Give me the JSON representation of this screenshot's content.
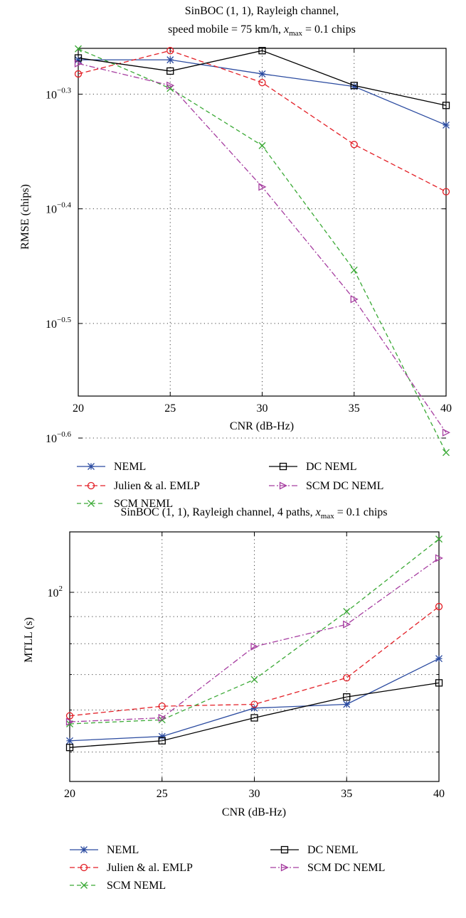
{
  "chart_data": [
    {
      "type": "line",
      "title_line1": "SinBOC (1, 1), Rayleigh channel,",
      "title_line2_prefix": "speed mobile = 75 km/h, ",
      "title_xmax_sym": "x",
      "title_xmax_sub": "max",
      "title_line2_suffix": " = 0.1 chips",
      "xlabel": "CNR (dB-Hz)",
      "ylabel": "RMSE (chips)",
      "yscale": "log",
      "xlim": [
        20,
        40
      ],
      "ylim": [
        0.2733,
        0.5495
      ],
      "x_ticks": [
        "20",
        "25",
        "30",
        "35",
        "40"
      ],
      "y_ticks": [
        {
          "value": 0.5012,
          "base": "10",
          "exp": "−0.3"
        },
        {
          "value": 0.3981,
          "base": "10",
          "exp": "−0.4"
        },
        {
          "value": 0.3162,
          "base": "10",
          "exp": "−0.5"
        },
        {
          "value": 0.2512,
          "base": "10",
          "exp": "−0.6"
        }
      ],
      "grid": true,
      "x": [
        20,
        25,
        30,
        35,
        40
      ],
      "series": [
        {
          "name": "NEML",
          "marker": "star",
          "color": "#2b4ba0",
          "dash": "",
          "values": [
            0.537,
            0.537,
            0.522,
            0.509,
            0.471
          ]
        },
        {
          "name": "Julien & al. EMLP",
          "marker": "circle",
          "color": "#e31f26",
          "dash": "7 4",
          "values": [
            0.522,
            0.547,
            0.513,
            0.453,
            0.412
          ]
        },
        {
          "name": "SCM NEML",
          "marker": "x",
          "color": "#3aa935",
          "dash": "6 4",
          "values": [
            0.549,
            0.507,
            0.452,
            0.352,
            0.244
          ]
        },
        {
          "name": "DC NEML",
          "marker": "square",
          "color": "#000000",
          "dash": "",
          "values": [
            0.539,
            0.525,
            0.547,
            0.51,
            0.49
          ]
        },
        {
          "name": "SCM DC NEML",
          "marker": "triangle-right",
          "color": "#a63da0",
          "dash": "8 3 2 3",
          "values": [
            0.533,
            0.51,
            0.416,
            0.332,
            0.254
          ]
        }
      ],
      "legend_placement": "bottom"
    },
    {
      "type": "line",
      "title_prefix": "SinBOC (1, 1), Rayleigh channel, 4 paths, ",
      "title_xmax_sym": "x",
      "title_xmax_sub": "max",
      "title_suffix": " = 0.1 chips",
      "xlabel": "CNR (dB-Hz)",
      "ylabel": "MTLL (s)",
      "yscale": "log",
      "xlim": [
        20,
        40
      ],
      "ylim": [
        44,
        130
      ],
      "x_ticks": [
        "20",
        "25",
        "30",
        "35",
        "40"
      ],
      "y_ticks": [
        {
          "value": 100,
          "base": "10",
          "exp": "2"
        }
      ],
      "y_minor_grid": [
        50,
        60,
        70,
        80,
        90
      ],
      "grid": true,
      "x": [
        20,
        25,
        30,
        35,
        40
      ],
      "series": [
        {
          "name": "NEML",
          "marker": "star",
          "color": "#2b4ba0",
          "dash": "",
          "values": [
            52.5,
            53.5,
            60.5,
            61.5,
            75
          ]
        },
        {
          "name": "Julien & al. EMLP",
          "marker": "circle",
          "color": "#e31f26",
          "dash": "7 4",
          "values": [
            58.5,
            61,
            61.5,
            69,
            94
          ]
        },
        {
          "name": "SCM NEML",
          "marker": "x",
          "color": "#3aa935",
          "dash": "6 4",
          "values": [
            56.5,
            57.5,
            68.5,
            92,
            126
          ]
        },
        {
          "name": "DC NEML",
          "marker": "square",
          "color": "#000000",
          "dash": "",
          "values": [
            51,
            52.5,
            58,
            63.5,
            67.5
          ]
        },
        {
          "name": "SCM DC NEML",
          "marker": "triangle-right",
          "color": "#a63da0",
          "dash": "8 3 2 3",
          "values": [
            57,
            58,
            79,
            87,
            116
          ]
        }
      ],
      "legend_placement": "bottom"
    }
  ]
}
